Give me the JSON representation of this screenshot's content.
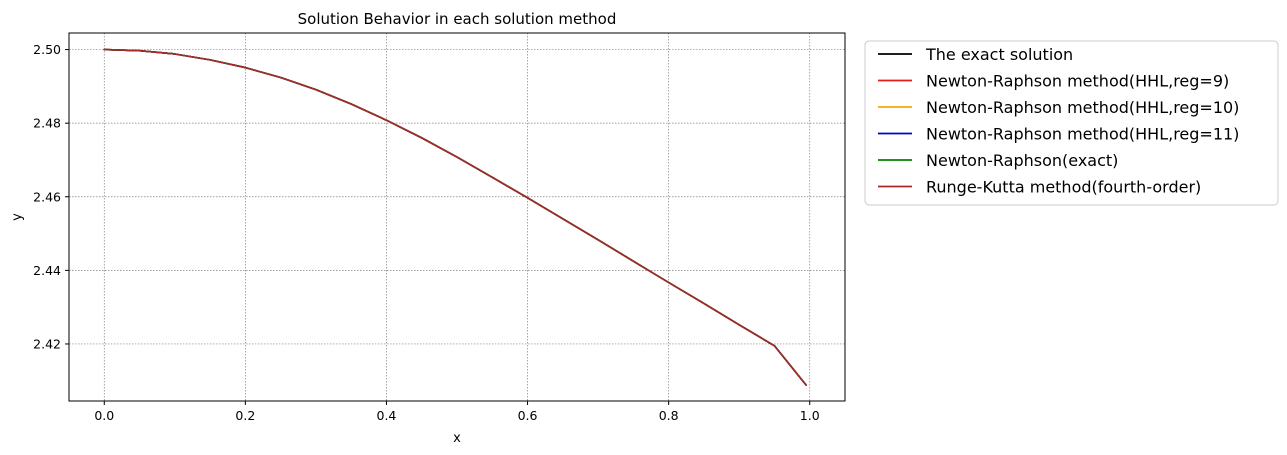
{
  "chart_data": {
    "type": "line",
    "title": "Solution Behavior in each solution method",
    "xlabel": "x",
    "ylabel": "y",
    "xlim": [
      -0.05,
      1.05
    ],
    "ylim": [
      2.4045,
      2.5045
    ],
    "xticks": [
      0.0,
      0.2,
      0.4,
      0.6,
      0.8,
      1.0
    ],
    "xtick_labels": [
      "0.0",
      "0.2",
      "0.4",
      "0.6",
      "0.8",
      "1.0"
    ],
    "yticks": [
      2.42,
      2.44,
      2.46,
      2.48,
      2.5
    ],
    "ytick_labels": [
      "2.42",
      "2.44",
      "2.46",
      "2.48",
      "2.50"
    ],
    "grid": true,
    "legend_position": "outside-upper-right",
    "x": [
      0.0,
      0.05,
      0.1,
      0.15,
      0.2,
      0.25,
      0.3,
      0.35,
      0.4,
      0.45,
      0.5,
      0.55,
      0.6,
      0.65,
      0.7,
      0.75,
      0.8,
      0.85,
      0.9,
      0.95,
      0.995
    ],
    "series": [
      {
        "name": "The exact solution",
        "color": "#000000",
        "values": [
          2.5,
          2.4997,
          2.4988,
          2.4972,
          2.4951,
          2.4924,
          2.4891,
          2.4852,
          2.4808,
          2.476,
          2.4708,
          2.4653,
          2.4597,
          2.454,
          2.4483,
          2.4425,
          2.4367,
          2.431,
          2.4252,
          2.4195,
          2.4088
        ]
      },
      {
        "name": "Newton-Raphson method(HHL,reg=9)",
        "color": "#e31a1c",
        "values": [
          2.5,
          2.4997,
          2.4988,
          2.4972,
          2.4951,
          2.4924,
          2.4891,
          2.4852,
          2.4808,
          2.476,
          2.4708,
          2.4653,
          2.4597,
          2.454,
          2.4483,
          2.4425,
          2.4367,
          2.431,
          2.4252,
          2.4195,
          2.4088
        ]
      },
      {
        "name": "Newton-Raphson method(HHL,reg=10)",
        "color": "#ffa500",
        "values": [
          2.5,
          2.4997,
          2.4988,
          2.4972,
          2.4951,
          2.4924,
          2.4891,
          2.4852,
          2.4808,
          2.476,
          2.4708,
          2.4653,
          2.4597,
          2.454,
          2.4483,
          2.4425,
          2.4367,
          2.431,
          2.4252,
          2.4195,
          2.4088
        ]
      },
      {
        "name": "Newton-Raphson method(HHL,reg=11)",
        "color": "#0000cd",
        "values": [
          2.5,
          2.4997,
          2.4988,
          2.4972,
          2.4951,
          2.4924,
          2.4891,
          2.4852,
          2.4808,
          2.476,
          2.4708,
          2.4653,
          2.4597,
          2.454,
          2.4483,
          2.4425,
          2.4367,
          2.431,
          2.4252,
          2.4195,
          2.4088
        ]
      },
      {
        "name": "Newton-Raphson(exact)",
        "color": "#008000",
        "values": [
          2.5,
          2.4997,
          2.4988,
          2.4972,
          2.4951,
          2.4924,
          2.4891,
          2.4852,
          2.4808,
          2.476,
          2.4708,
          2.4653,
          2.4597,
          2.454,
          2.4483,
          2.4425,
          2.4367,
          2.431,
          2.4252,
          2.4195,
          2.4088
        ]
      },
      {
        "name": "Runge-Kutta method(fourth-order)",
        "color": "#a52a2a",
        "values": [
          2.5,
          2.4997,
          2.4988,
          2.4972,
          2.4951,
          2.4924,
          2.4891,
          2.4852,
          2.4808,
          2.476,
          2.4708,
          2.4653,
          2.4597,
          2.454,
          2.4483,
          2.4425,
          2.4367,
          2.431,
          2.4252,
          2.4195,
          2.4088
        ]
      }
    ]
  }
}
